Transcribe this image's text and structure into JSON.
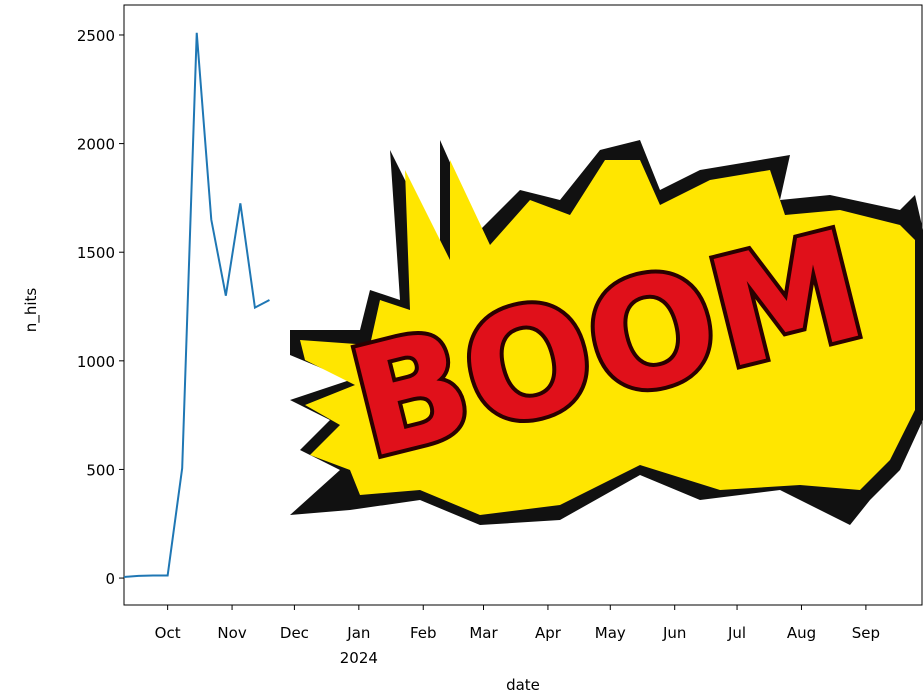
{
  "chart_data": {
    "type": "line",
    "x": [
      "2023-09-10",
      "2023-09-17",
      "2023-09-24",
      "2023-10-01",
      "2023-10-08",
      "2023-10-15",
      "2023-10-22",
      "2023-10-29",
      "2023-11-05",
      "2023-11-12",
      "2023-11-19"
    ],
    "series": [
      {
        "name": "n_hits",
        "color": "#1f77b4",
        "values": [
          5,
          10,
          12,
          12,
          506,
          2510,
          1650,
          1300,
          1725,
          1245,
          1280
        ]
      }
    ],
    "xlabel": "date",
    "ylabel": "n_hits",
    "xlim": [
      "2023-09-10",
      "2024-09-28"
    ],
    "xticks": [
      {
        "value": "2023-10-01",
        "label": "Oct"
      },
      {
        "value": "2023-11-01",
        "label": "Nov"
      },
      {
        "value": "2023-12-01",
        "label": "Dec"
      },
      {
        "value": "2024-01-01",
        "label": "Jan\n2024"
      },
      {
        "value": "2024-02-01",
        "label": "Feb"
      },
      {
        "value": "2024-03-01",
        "label": "Mar"
      },
      {
        "value": "2024-04-01",
        "label": "Apr"
      },
      {
        "value": "2024-05-01",
        "label": "May"
      },
      {
        "value": "2024-06-01",
        "label": "Jun"
      },
      {
        "value": "2024-07-01",
        "label": "Jul"
      },
      {
        "value": "2024-08-01",
        "label": "Aug"
      },
      {
        "value": "2024-09-01",
        "label": "Sep"
      }
    ],
    "ylim": [
      -124,
      2638
    ],
    "yticks": [
      0,
      500,
      1000,
      1500,
      2000,
      2500
    ],
    "annotation": "BOOM"
  }
}
